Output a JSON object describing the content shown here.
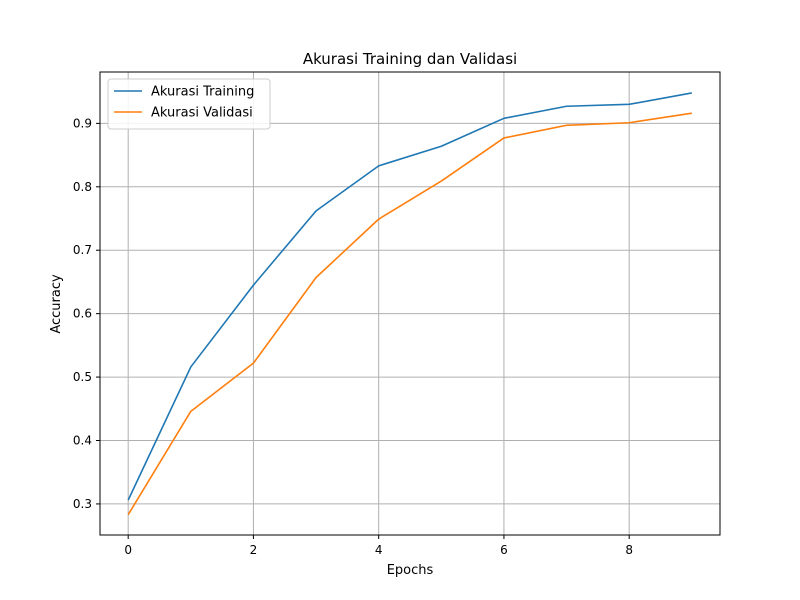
{
  "chart_data": {
    "type": "line",
    "title": "Akurasi Training dan Validasi",
    "xlabel": "Epochs",
    "ylabel": "Accuracy",
    "x": [
      0,
      1,
      2,
      3,
      4,
      5,
      6,
      7,
      8,
      9
    ],
    "xlim": [
      -0.45,
      9.45
    ],
    "ylim": [
      0.251,
      0.981
    ],
    "xticks": [
      0,
      2,
      4,
      6,
      8
    ],
    "yticks": [
      0.3,
      0.4,
      0.5,
      0.6,
      0.7,
      0.8,
      0.9
    ],
    "grid": true,
    "legend_position": "upper-left",
    "series": [
      {
        "name": "Akurasi Training",
        "color": "#1f77b4",
        "values": [
          0.306,
          0.516,
          0.645,
          0.762,
          0.833,
          0.864,
          0.908,
          0.927,
          0.93,
          0.948
        ]
      },
      {
        "name": "Akurasi Validasi",
        "color": "#ff7f0e",
        "values": [
          0.283,
          0.446,
          0.522,
          0.657,
          0.749,
          0.809,
          0.877,
          0.897,
          0.901,
          0.916
        ]
      }
    ]
  }
}
